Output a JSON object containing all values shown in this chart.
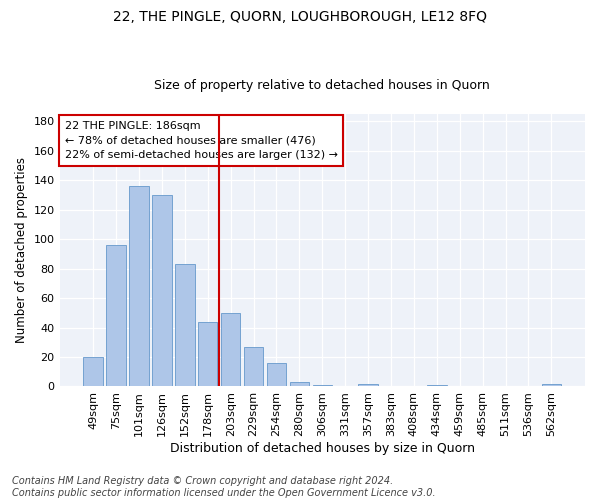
{
  "title": "22, THE PINGLE, QUORN, LOUGHBOROUGH, LE12 8FQ",
  "subtitle": "Size of property relative to detached houses in Quorn",
  "xlabel": "Distribution of detached houses by size in Quorn",
  "ylabel": "Number of detached properties",
  "categories": [
    "49sqm",
    "75sqm",
    "101sqm",
    "126sqm",
    "152sqm",
    "178sqm",
    "203sqm",
    "229sqm",
    "254sqm",
    "280sqm",
    "306sqm",
    "331sqm",
    "357sqm",
    "383sqm",
    "408sqm",
    "434sqm",
    "459sqm",
    "485sqm",
    "511sqm",
    "536sqm",
    "562sqm"
  ],
  "values": [
    20,
    96,
    136,
    130,
    83,
    44,
    50,
    27,
    16,
    3,
    1,
    0,
    2,
    0,
    0,
    1,
    0,
    0,
    0,
    0,
    2
  ],
  "bar_color": "#aec6e8",
  "bar_edge_color": "#6699cc",
  "vline_x_index": 5,
  "vline_color": "#cc0000",
  "annotation_lines": [
    "22 THE PINGLE: 186sqm",
    "← 78% of detached houses are smaller (476)",
    "22% of semi-detached houses are larger (132) →"
  ],
  "annotation_box_color": "#ffffff",
  "annotation_box_edge_color": "#cc0000",
  "ylim": [
    0,
    185
  ],
  "yticks": [
    0,
    20,
    40,
    60,
    80,
    100,
    120,
    140,
    160,
    180
  ],
  "bg_color": "#eef2f9",
  "footer": "Contains HM Land Registry data © Crown copyright and database right 2024.\nContains public sector information licensed under the Open Government Licence v3.0.",
  "title_fontsize": 10,
  "subtitle_fontsize": 9,
  "xlabel_fontsize": 9,
  "ylabel_fontsize": 8.5,
  "footer_fontsize": 7,
  "tick_fontsize": 8,
  "annot_fontsize": 8
}
